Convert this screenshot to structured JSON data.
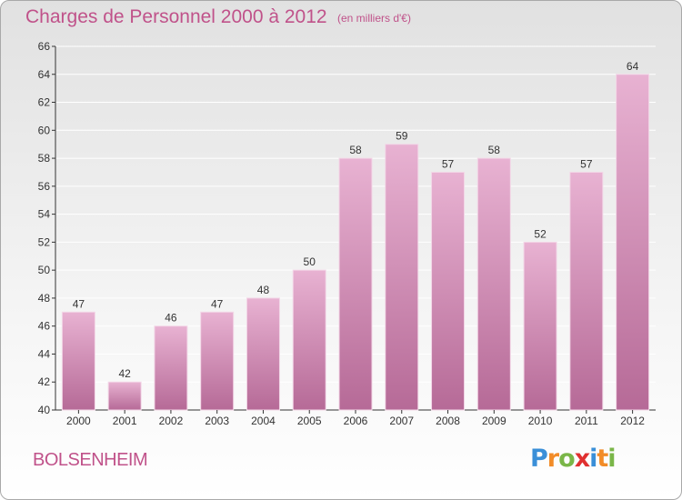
{
  "title": "Charges de Personnel 2000 à 2012",
  "subtitle": "(en milliers d'€)",
  "city": "BOLSENHEIM",
  "logo": {
    "letters": [
      "P",
      "r",
      "o",
      "x",
      "i",
      "t",
      "i"
    ],
    "colors": [
      "#3a8fd8",
      "#f28c28",
      "#7ab648",
      "#e03030",
      "#3a8fd8",
      "#f28c28",
      "#7ab648"
    ]
  },
  "colors": {
    "bar_light": "#e8b2d2",
    "bar_dark": "#b66a97",
    "title": "#c0528a",
    "axis": "#333333",
    "grid": "#ffffff"
  },
  "chart_data": {
    "type": "bar",
    "categories": [
      "2000",
      "2001",
      "2002",
      "2003",
      "2004",
      "2005",
      "2006",
      "2007",
      "2008",
      "2009",
      "2010",
      "2011",
      "2012"
    ],
    "values": [
      47,
      42,
      46,
      47,
      48,
      50,
      58,
      59,
      57,
      58,
      52,
      57,
      64
    ],
    "ylim": [
      40,
      66
    ],
    "yticks": [
      40,
      42,
      44,
      46,
      48,
      50,
      52,
      54,
      56,
      58,
      60,
      62,
      64,
      66
    ],
    "grid": true,
    "data_labels": true,
    "legend": "none"
  }
}
